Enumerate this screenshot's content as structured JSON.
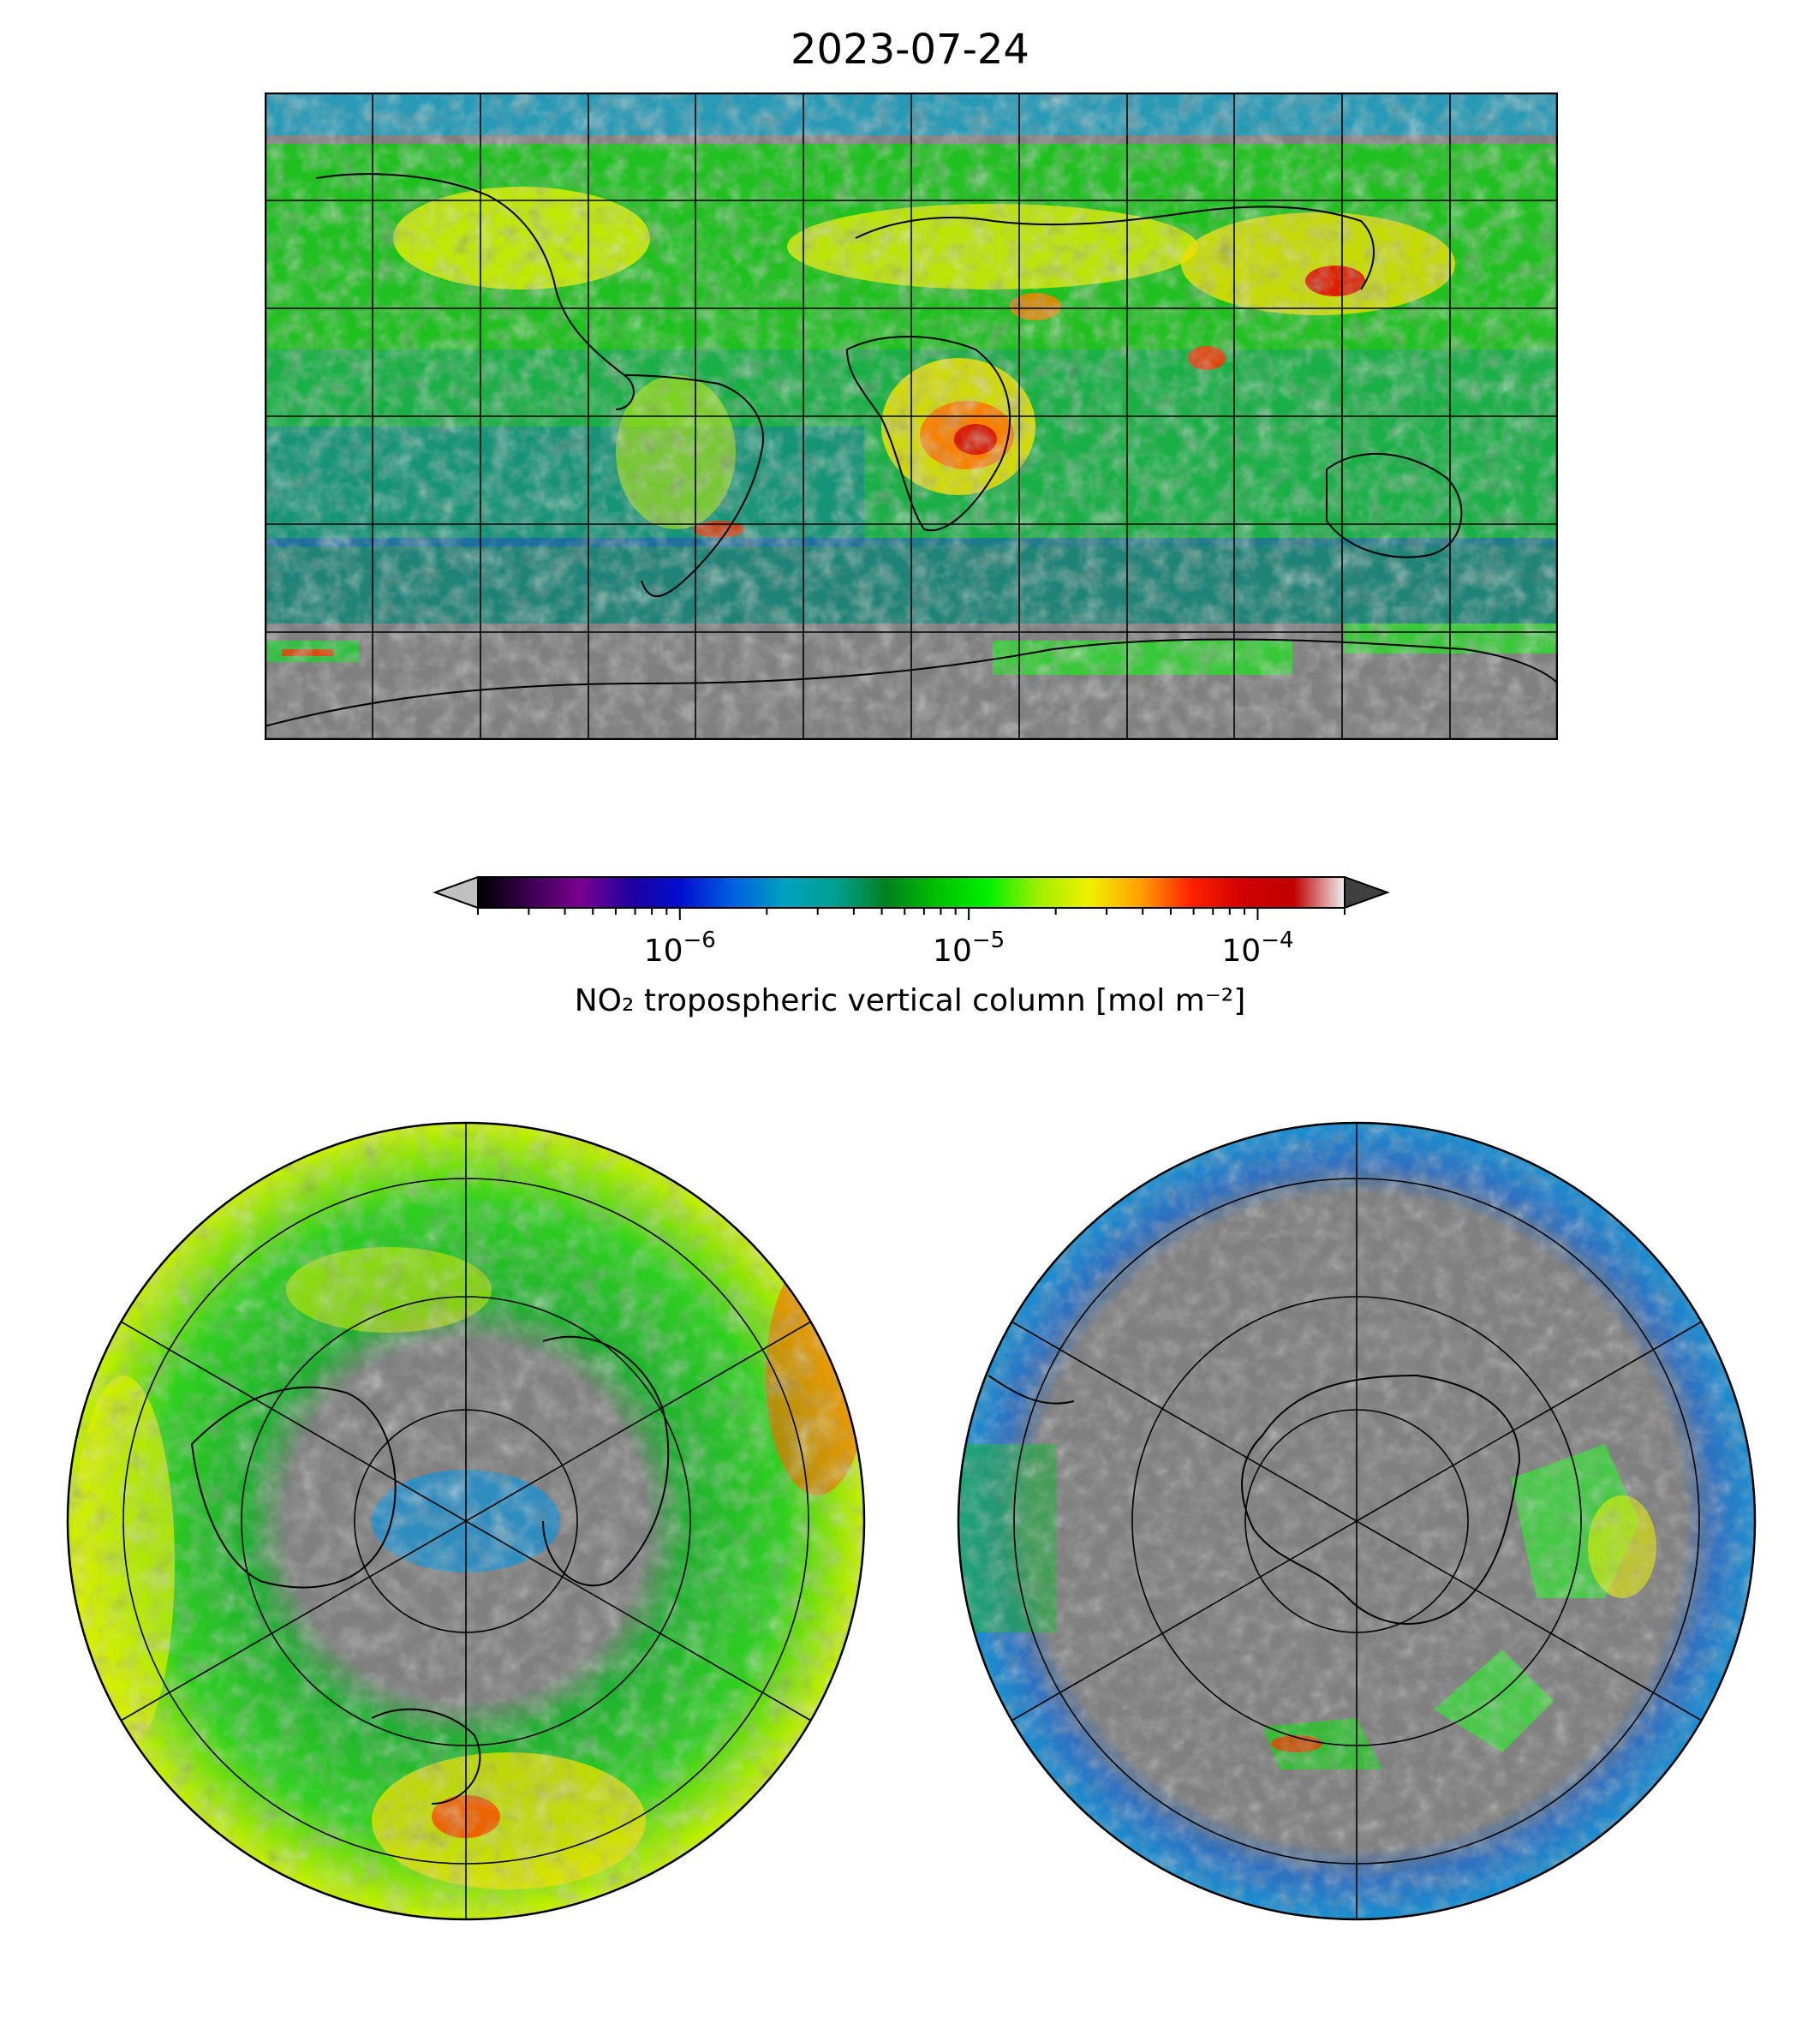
{
  "title": "2023-07-24",
  "colorbar": {
    "label": "NO₂ tropospheric vertical column [mol m⁻²]",
    "scale": "log",
    "range": [
      2e-07,
      0.0002
    ],
    "extend": "both",
    "ticks": [
      {
        "value": 1e-06,
        "base": "10",
        "exp": "−6"
      },
      {
        "value": 1e-05,
        "base": "10",
        "exp": "−5"
      },
      {
        "value": 0.0001,
        "base": "10",
        "exp": "−4"
      }
    ],
    "colors": {
      "under": "#c0c0c0",
      "over": "#404040",
      "missing": "#808080",
      "stops": [
        "#000000",
        "#3a0050",
        "#7a0090",
        "#2000a0",
        "#0010d0",
        "#0060e0",
        "#00a0c0",
        "#00a090",
        "#008020",
        "#00c000",
        "#00f000",
        "#a0f000",
        "#f0f000",
        "#ffa000",
        "#ff2000",
        "#d00000",
        "#c00000",
        "#f0f0f0"
      ]
    }
  },
  "panels": [
    {
      "id": "world",
      "projection": "PlateCarree",
      "lon_range": [
        -180,
        180
      ],
      "lat_range": [
        -90,
        90
      ]
    },
    {
      "id": "north",
      "projection": "NorthPolarStereo"
    },
    {
      "id": "south",
      "projection": "SouthPolarStereo"
    }
  ]
}
